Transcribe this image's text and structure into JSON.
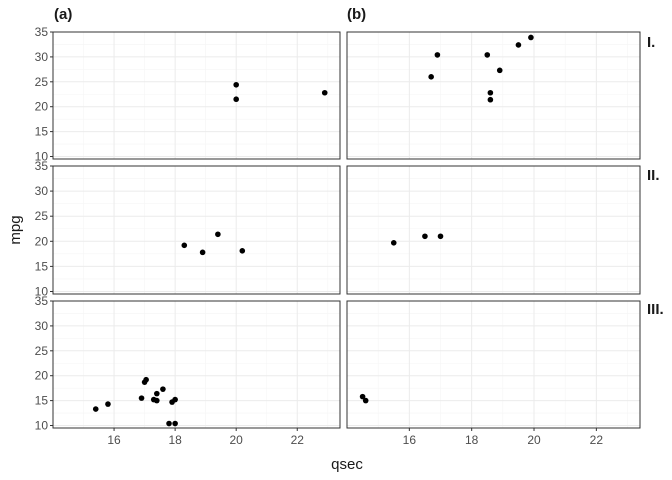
{
  "chart_data": {
    "type": "scatter",
    "xlabel": "qsec",
    "ylabel": "mpg",
    "xlim": [
      14.0,
      23.4
    ],
    "ylim": [
      9.5,
      35.0
    ],
    "x_ticks": [
      16,
      18,
      20,
      22
    ],
    "y_ticks": [
      10,
      15,
      20,
      25,
      30,
      35
    ],
    "grid": true,
    "columns": [
      "(a)",
      "(b)"
    ],
    "rows": [
      "I.",
      "II.",
      "III."
    ],
    "panels": [
      {
        "row": 0,
        "col": 0,
        "points": [
          [
            20.0,
            24.4
          ],
          [
            20.0,
            21.5
          ],
          [
            22.9,
            22.8
          ]
        ]
      },
      {
        "row": 0,
        "col": 1,
        "points": [
          [
            16.7,
            26.0
          ],
          [
            16.9,
            30.4
          ],
          [
            18.5,
            30.4
          ],
          [
            18.6,
            22.8
          ],
          [
            18.6,
            21.4
          ],
          [
            18.9,
            27.3
          ],
          [
            19.5,
            32.4
          ],
          [
            19.9,
            33.9
          ]
        ]
      },
      {
        "row": 1,
        "col": 0,
        "points": [
          [
            18.3,
            19.2
          ],
          [
            18.9,
            17.8
          ],
          [
            19.4,
            21.4
          ],
          [
            20.2,
            18.1
          ]
        ]
      },
      {
        "row": 1,
        "col": 1,
        "points": [
          [
            15.5,
            19.7
          ],
          [
            16.5,
            21.0
          ],
          [
            17.0,
            21.0
          ]
        ]
      },
      {
        "row": 2,
        "col": 0,
        "points": [
          [
            15.4,
            13.3
          ],
          [
            15.8,
            14.3
          ],
          [
            16.9,
            15.5
          ],
          [
            17.0,
            18.7
          ],
          [
            17.05,
            19.2
          ],
          [
            17.3,
            15.2
          ],
          [
            17.4,
            16.4
          ],
          [
            17.4,
            15.0
          ],
          [
            17.6,
            17.3
          ],
          [
            17.8,
            10.4
          ],
          [
            18.0,
            10.4
          ],
          [
            18.0,
            15.2
          ],
          [
            17.9,
            14.7
          ]
        ]
      },
      {
        "row": 2,
        "col": 1,
        "points": [
          [
            14.5,
            15.8
          ],
          [
            14.6,
            15.0
          ]
        ]
      }
    ]
  }
}
